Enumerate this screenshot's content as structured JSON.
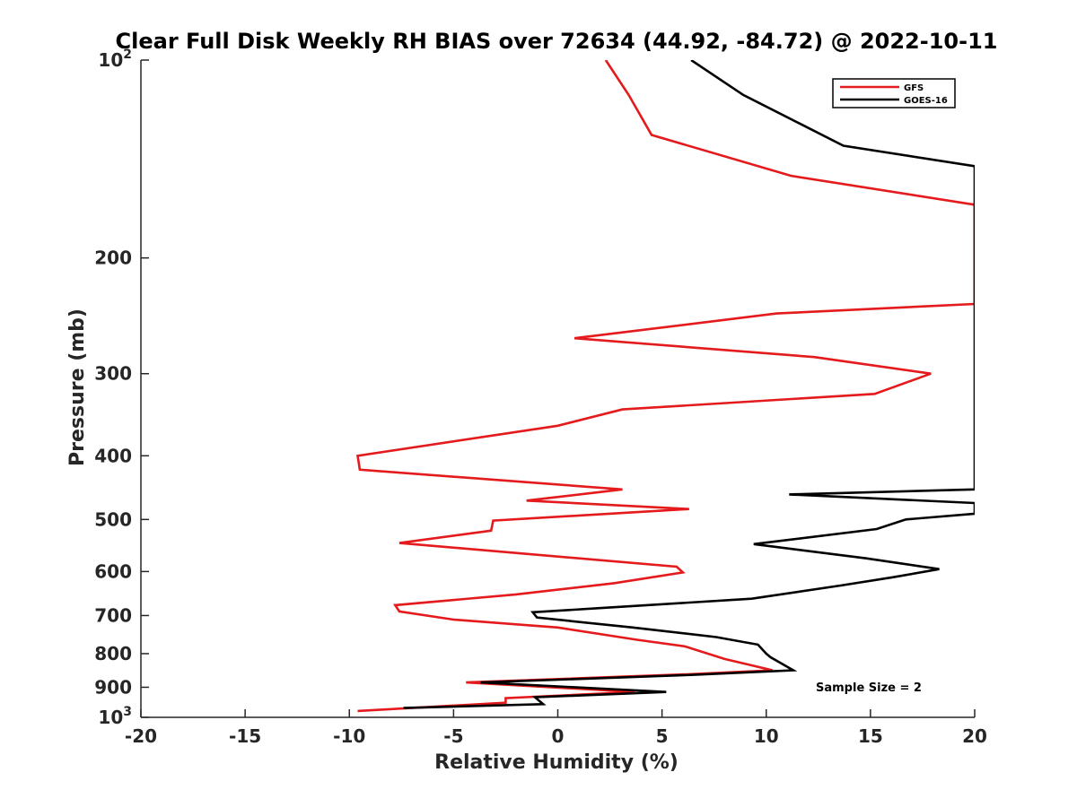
{
  "chart_data": {
    "type": "line",
    "title": "Clear Full Disk Weekly RH BIAS over 72634 (44.92, -84.72) @ 2022-10-11",
    "xlabel": "Relative Humidity (%)",
    "ylabel": "Pressure (mb)",
    "xlim": [
      -20,
      20
    ],
    "ylim": [
      100,
      1000
    ],
    "y_scale": "log",
    "y_reversed": true,
    "x_ticks": [
      "-20",
      "-15",
      "-10",
      "-5",
      "0",
      "5",
      "10",
      "15",
      "20"
    ],
    "y_ticks": [
      {
        "value": 100,
        "base": "10",
        "exp": "2"
      },
      {
        "value": 200,
        "label": "200"
      },
      {
        "value": 300,
        "label": "300"
      },
      {
        "value": 400,
        "label": "400"
      },
      {
        "value": 500,
        "label": "500"
      },
      {
        "value": 600,
        "label": "600"
      },
      {
        "value": 700,
        "label": "700"
      },
      {
        "value": 800,
        "label": "800"
      },
      {
        "value": 900,
        "label": "900"
      },
      {
        "value": 1000,
        "base": "10",
        "exp": "3"
      }
    ],
    "legend_position": "top-right",
    "annotation": "Sample Size = 2",
    "series": [
      {
        "name": "GFS",
        "color": "#e41a1c",
        "points": [
          [
            2.3,
            100
          ],
          [
            3.4,
            113
          ],
          [
            4.5,
            130
          ],
          [
            11.2,
            150
          ],
          [
            20,
            166
          ],
          [
            20,
            235
          ],
          [
            10.5,
            243
          ],
          [
            0.8,
            265
          ],
          [
            12.3,
            283
          ],
          [
            17.9,
            300
          ],
          [
            15.2,
            322
          ],
          [
            3.1,
            340
          ],
          [
            0.0,
            360
          ],
          [
            -9.6,
            400
          ],
          [
            -9.5,
            420
          ],
          [
            3.1,
            450
          ],
          [
            -1.5,
            468
          ],
          [
            6.3,
            482
          ],
          [
            -3.1,
            502
          ],
          [
            -3.2,
            520
          ],
          [
            -7.6,
            543
          ],
          [
            5.7,
            590
          ],
          [
            6.0,
            602
          ],
          [
            2.7,
            625
          ],
          [
            -2.0,
            650
          ],
          [
            -7.8,
            675
          ],
          [
            -7.6,
            690
          ],
          [
            -5.0,
            710
          ],
          [
            0.0,
            730
          ],
          [
            3.8,
            762
          ],
          [
            6.1,
            780
          ],
          [
            8.0,
            815
          ],
          [
            10.3,
            848
          ],
          [
            6.2,
            860
          ],
          [
            -4.4,
            885
          ],
          [
            3.7,
            915
          ],
          [
            -2.5,
            935
          ],
          [
            -2.5,
            950
          ],
          [
            -9.6,
            978
          ]
        ]
      },
      {
        "name": "GOES-16",
        "color": "#000000",
        "points": [
          [
            6.4,
            100
          ],
          [
            8.9,
            113
          ],
          [
            13.7,
            135
          ],
          [
            20,
            145
          ],
          [
            20,
            450
          ],
          [
            11.1,
            458
          ],
          [
            20,
            472
          ],
          [
            20,
            490
          ],
          [
            16.7,
            500
          ],
          [
            15.3,
            517
          ],
          [
            9.4,
            545
          ],
          [
            14.8,
            573
          ],
          [
            18.3,
            595
          ],
          [
            16.1,
            612
          ],
          [
            13.6,
            630
          ],
          [
            9.3,
            660
          ],
          [
            2.0,
            682
          ],
          [
            -1.2,
            692
          ],
          [
            -1.0,
            705
          ],
          [
            3.6,
            730
          ],
          [
            7.6,
            755
          ],
          [
            9.6,
            775
          ],
          [
            10.0,
            800
          ],
          [
            10.2,
            810
          ],
          [
            11.3,
            848
          ],
          [
            6.4,
            862
          ],
          [
            -3.7,
            885
          ],
          [
            5.2,
            915
          ],
          [
            -1.1,
            932
          ],
          [
            -0.7,
            955
          ],
          [
            -7.4,
            968
          ]
        ]
      }
    ]
  }
}
